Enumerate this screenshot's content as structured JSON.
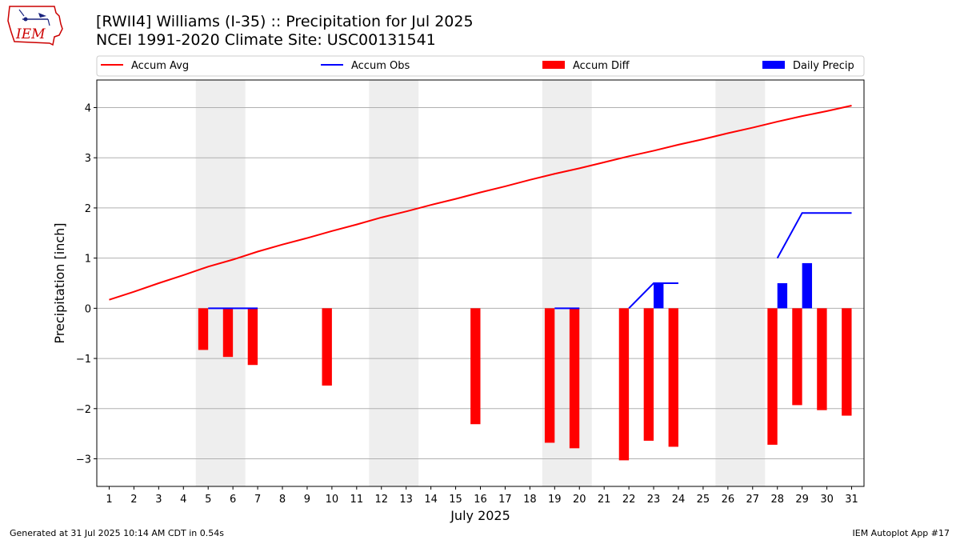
{
  "header": {
    "title": "[RWII4] Williams (I-35) :: Precipitation for Jul 2025",
    "subtitle": "NCEI 1991-2020 Climate Site: USC00131541",
    "logo_text": "IEM"
  },
  "footer": {
    "left": "Generated at 31 Jul 2025 10:14 AM CDT in 0.54s",
    "right": "IEM Autoplot App #17"
  },
  "colors": {
    "accum_avg": "#ff0000",
    "accum_obs": "#0000ff",
    "accum_diff": "#ff0000",
    "daily_precip": "#0000ff",
    "weekend_shade": "#eeeeee",
    "grid": "#b0b0b0"
  },
  "chart_data": {
    "type": "bar",
    "xlabel": "July 2025",
    "ylabel": "Precipitation [inch]",
    "xlim": [
      0.5,
      31.5
    ],
    "ylim": [
      -3.55,
      4.55
    ],
    "yticks": [
      4,
      3,
      2,
      1,
      0,
      -1,
      -2,
      -3
    ],
    "ytick_labels": [
      "4",
      "3",
      "2",
      "1",
      "0",
      "−1",
      "−2",
      "−3"
    ],
    "days": [
      1,
      2,
      3,
      4,
      5,
      6,
      7,
      8,
      9,
      10,
      11,
      12,
      13,
      14,
      15,
      16,
      17,
      18,
      19,
      20,
      21,
      22,
      23,
      24,
      25,
      26,
      27,
      28,
      29,
      30,
      31
    ],
    "grid": "y",
    "legend_position": "top",
    "legend": [
      "Accum Avg",
      "Accum Obs",
      "Accum Diff",
      "Daily Precip"
    ],
    "weekend_spans": [
      [
        4.5,
        6.5
      ],
      [
        11.5,
        13.5
      ],
      [
        18.5,
        20.5
      ],
      [
        25.5,
        27.5
      ]
    ],
    "series": [
      {
        "name": "Accum Avg",
        "type": "line",
        "x": [
          1,
          2,
          3,
          4,
          5,
          6,
          7,
          8,
          9,
          10,
          11,
          12,
          13,
          14,
          15,
          16,
          17,
          18,
          19,
          20,
          21,
          22,
          23,
          24,
          25,
          26,
          27,
          28,
          29,
          30,
          31
        ],
        "values": [
          0.17,
          0.33,
          0.5,
          0.66,
          0.83,
          0.97,
          1.13,
          1.27,
          1.4,
          1.54,
          1.67,
          1.81,
          1.93,
          2.06,
          2.18,
          2.31,
          2.43,
          2.56,
          2.68,
          2.79,
          2.91,
          3.03,
          3.14,
          3.26,
          3.37,
          3.49,
          3.6,
          3.72,
          3.83,
          3.93,
          4.04
        ]
      },
      {
        "name": "Accum Obs",
        "type": "line",
        "segments": [
          {
            "x": [
              5,
              6,
              7
            ],
            "values": [
              0,
              0,
              0
            ]
          },
          {
            "x": [
              19,
              20
            ],
            "values": [
              0,
              0
            ]
          },
          {
            "x": [
              22,
              23,
              24
            ],
            "values": [
              0,
              0.5,
              0.5
            ]
          },
          {
            "x": [
              28,
              29,
              30,
              31
            ],
            "values": [
              1.0,
              1.9,
              1.9,
              1.9
            ]
          }
        ]
      },
      {
        "name": "Accum Diff",
        "type": "bar",
        "x": [
          5,
          6,
          7,
          10,
          16,
          19,
          20,
          22,
          23,
          24,
          28,
          29,
          30,
          31
        ],
        "values": [
          -0.83,
          -0.97,
          -1.13,
          -1.54,
          -2.31,
          -2.68,
          -2.79,
          -3.03,
          -2.64,
          -2.76,
          -2.72,
          -1.93,
          -2.03,
          -2.14
        ]
      },
      {
        "name": "Daily Precip",
        "type": "bar",
        "x": [
          23,
          28,
          29
        ],
        "values": [
          0.5,
          0.5,
          0.9
        ]
      }
    ]
  }
}
